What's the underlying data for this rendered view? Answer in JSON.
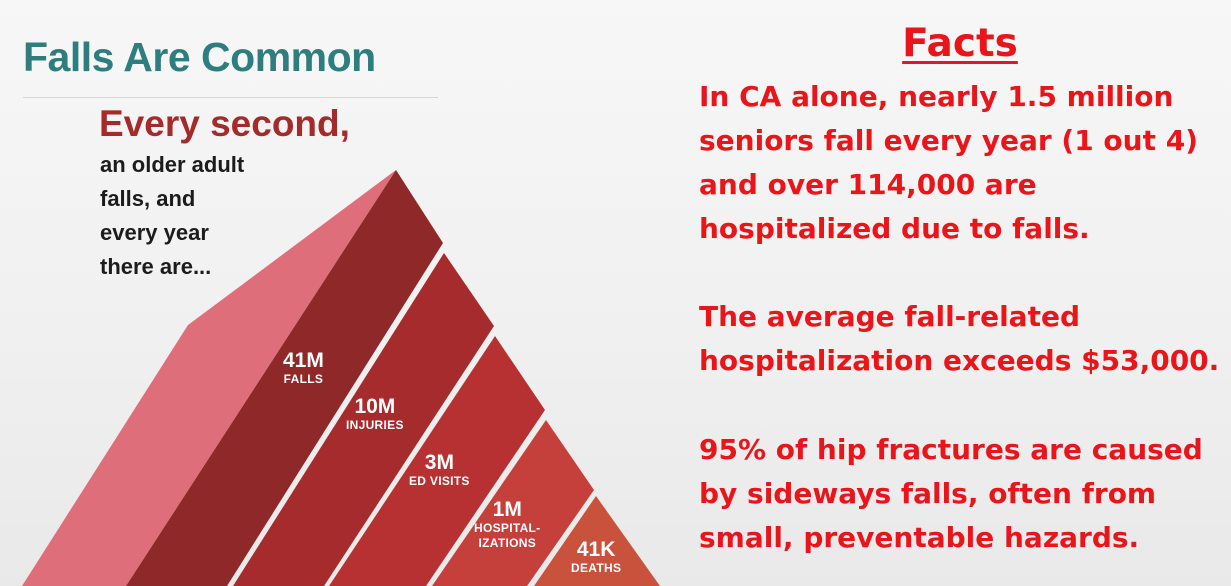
{
  "left_panel": {
    "title": "Falls Are Common",
    "headline": "Every second,",
    "subtext_lines": [
      "an older adult",
      "falls, and",
      "every year",
      "there are..."
    ]
  },
  "pyramid": {
    "tiers": [
      {
        "number": "41M",
        "caption_lines": [
          "FALLS"
        ],
        "color": "#8f2829"
      },
      {
        "number": "10M",
        "caption_lines": [
          "INJURIES"
        ],
        "color": "#a52b2d"
      },
      {
        "number": "3M",
        "caption_lines": [
          "ED VISITS"
        ],
        "color": "#b73132"
      },
      {
        "number": "1M",
        "caption_lines": [
          "HOSPITAL-",
          "IZATIONS"
        ],
        "color": "#c5403a"
      },
      {
        "number": "41K",
        "caption_lines": [
          "DEATHS"
        ],
        "color": "#c9523c"
      }
    ],
    "side_color": "#df6e7b"
  },
  "right_panel": {
    "heading": "Facts",
    "facts": [
      {
        "lines": [
          "In CA alone, nearly 1.5 million",
          "seniors fall every year (1 out 4)",
          "and over 114,000 are",
          "hospitalized due to falls."
        ]
      },
      {
        "lines": [
          "The average fall-related",
          "hospitalization exceeds $53,000."
        ]
      },
      {
        "lines": [
          "95% of hip fractures are caused",
          "by sideways falls, often from",
          "small, preventable hazards."
        ]
      }
    ],
    "color": "#e8151b"
  }
}
